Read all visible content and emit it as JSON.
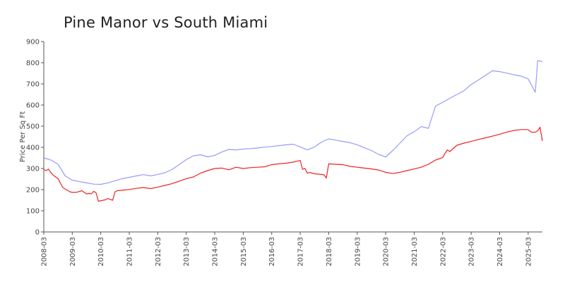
{
  "chart_data": {
    "type": "line",
    "title": "Pine Manor vs South Miami",
    "ylabel": "Price Per Sq Ft",
    "xlabel": "",
    "ylim": [
      0,
      900
    ],
    "yticks": [
      0,
      100,
      200,
      300,
      400,
      500,
      600,
      700,
      800,
      900
    ],
    "xlim": [
      "2008-03",
      "2025-09"
    ],
    "xticks": [
      "2008-03",
      "2009-03",
      "2010-03",
      "2011-03",
      "2012-03",
      "2013-03",
      "2014-03",
      "2015-03",
      "2016-03",
      "2017-03",
      "2018-03",
      "2019-03",
      "2020-03",
      "2021-03",
      "2022-03",
      "2023-03",
      "2024-03",
      "2025-03"
    ],
    "grid": false,
    "legend": "none",
    "series": [
      {
        "color": "#9999ff",
        "x": [
          "2008-03",
          "2008-06",
          "2008-09",
          "2008-12",
          "2009-03",
          "2009-06",
          "2009-09",
          "2009-12",
          "2010-03",
          "2010-06",
          "2010-09",
          "2010-12",
          "2011-03",
          "2011-06",
          "2011-09",
          "2011-12",
          "2012-03",
          "2012-06",
          "2012-09",
          "2012-12",
          "2013-03",
          "2013-06",
          "2013-09",
          "2013-12",
          "2014-03",
          "2014-06",
          "2014-09",
          "2014-12",
          "2015-03",
          "2015-06",
          "2015-09",
          "2015-12",
          "2016-03",
          "2016-06",
          "2016-09",
          "2016-12",
          "2017-03",
          "2017-06",
          "2017-09",
          "2017-12",
          "2018-03",
          "2018-06",
          "2018-09",
          "2018-12",
          "2019-03",
          "2019-06",
          "2019-09",
          "2019-12",
          "2020-03",
          "2020-06",
          "2020-09",
          "2020-12",
          "2021-03",
          "2021-06",
          "2021-09",
          "2021-12",
          "2022-03",
          "2022-06",
          "2022-09",
          "2022-12",
          "2023-03",
          "2023-06",
          "2023-09",
          "2023-12",
          "2024-03",
          "2024-06",
          "2024-09",
          "2024-12",
          "2025-03",
          "2025-06",
          "2025-07",
          "2025-09"
        ],
        "values": [
          350,
          340,
          320,
          265,
          245,
          238,
          232,
          226,
          225,
          232,
          242,
          252,
          258,
          265,
          271,
          265,
          272,
          280,
          295,
          318,
          342,
          360,
          365,
          355,
          362,
          378,
          390,
          388,
          392,
          394,
          397,
          401,
          404,
          408,
          412,
          415,
          402,
          388,
          402,
          425,
          440,
          434,
          428,
          422,
          412,
          398,
          385,
          367,
          355,
          385,
          420,
          455,
          474,
          498,
          490,
          595,
          613,
          632,
          650,
          668,
          697,
          718,
          740,
          762,
          758,
          751,
          743,
          737,
          724,
          660,
          810,
          805
        ]
      },
      {
        "color": "#ee2222",
        "x": [
          "2008-03",
          "2008-04",
          "2008-05",
          "2008-06",
          "2008-07",
          "2008-09",
          "2008-11",
          "2008-12",
          "2009-02",
          "2009-03",
          "2009-05",
          "2009-07",
          "2009-09",
          "2009-10",
          "2009-11",
          "2009-12",
          "2010-01",
          "2010-02",
          "2010-04",
          "2010-05",
          "2010-06",
          "2010-08",
          "2010-09",
          "2010-10",
          "2010-12",
          "2011-03",
          "2011-06",
          "2011-09",
          "2011-12",
          "2012-03",
          "2012-06",
          "2012-09",
          "2012-12",
          "2013-03",
          "2013-06",
          "2013-09",
          "2013-12",
          "2014-03",
          "2014-06",
          "2014-09",
          "2014-12",
          "2015-03",
          "2015-06",
          "2015-09",
          "2015-12",
          "2016-03",
          "2016-06",
          "2016-09",
          "2016-12",
          "2017-03",
          "2017-04",
          "2017-05",
          "2017-06",
          "2017-07",
          "2017-09",
          "2017-12",
          "2018-01",
          "2018-02",
          "2018-03",
          "2018-06",
          "2018-09",
          "2018-12",
          "2019-03",
          "2019-06",
          "2019-09",
          "2019-12",
          "2020-03",
          "2020-06",
          "2020-09",
          "2020-12",
          "2021-03",
          "2021-06",
          "2021-09",
          "2021-12",
          "2022-03",
          "2022-04",
          "2022-05",
          "2022-06",
          "2022-09",
          "2022-12",
          "2023-03",
          "2023-06",
          "2023-09",
          "2023-12",
          "2024-03",
          "2024-06",
          "2024-09",
          "2024-12",
          "2025-03",
          "2025-04",
          "2025-05",
          "2025-06",
          "2025-07",
          "2025-08",
          "2025-09"
        ],
        "values": [
          295,
          290,
          297,
          280,
          268,
          252,
          210,
          203,
          190,
          187,
          188,
          195,
          180,
          182,
          180,
          192,
          185,
          145,
          150,
          152,
          158,
          150,
          190,
          195,
          197,
          201,
          206,
          210,
          205,
          212,
          220,
          228,
          240,
          252,
          260,
          278,
          290,
          300,
          302,
          294,
          306,
          300,
          304,
          306,
          308,
          318,
          322,
          325,
          330,
          338,
          296,
          300,
          278,
          281,
          275,
          272,
          270,
          255,
          322,
          320,
          318,
          310,
          306,
          302,
          298,
          293,
          282,
          276,
          282,
          290,
          298,
          306,
          320,
          340,
          352,
          372,
          388,
          380,
          410,
          420,
          428,
          437,
          445,
          453,
          462,
          472,
          480,
          484,
          484,
          474,
          471,
          472,
          478,
          495,
          430
        ]
      }
    ]
  }
}
